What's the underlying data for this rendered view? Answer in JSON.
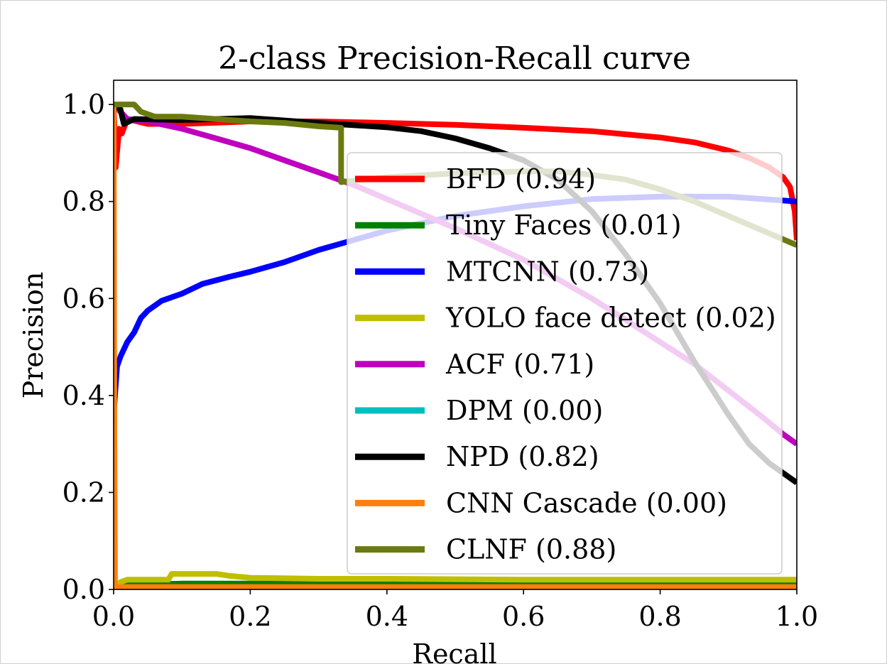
{
  "chart_data": {
    "type": "line",
    "title": "2-class Precision-Recall curve",
    "xlabel": "Recall",
    "ylabel": "Precision",
    "xlim": [
      0.0,
      1.0
    ],
    "ylim": [
      0.0,
      1.05
    ],
    "xticks": [
      0.0,
      0.2,
      0.4,
      0.6,
      0.8,
      1.0
    ],
    "xtick_labels": [
      "0.0",
      "0.2",
      "0.4",
      "0.6",
      "0.8",
      "1.0"
    ],
    "yticks": [
      0.0,
      0.2,
      0.4,
      0.6,
      0.8,
      1.0
    ],
    "ytick_labels": [
      "0.0",
      "0.2",
      "0.4",
      "0.6",
      "0.8",
      "1.0"
    ],
    "grid": false,
    "legend_position": "center-right",
    "series": [
      {
        "name": "BFD (0.94)",
        "color": "#ff0000",
        "points": [
          [
            0.0,
            1.0
          ],
          [
            0.003,
            0.87
          ],
          [
            0.008,
            0.95
          ],
          [
            0.012,
            0.94
          ],
          [
            0.02,
            0.97
          ],
          [
            0.05,
            0.96
          ],
          [
            0.1,
            0.96
          ],
          [
            0.2,
            0.965
          ],
          [
            0.3,
            0.965
          ],
          [
            0.4,
            0.962
          ],
          [
            0.5,
            0.958
          ],
          [
            0.6,
            0.952
          ],
          [
            0.7,
            0.945
          ],
          [
            0.8,
            0.932
          ],
          [
            0.85,
            0.922
          ],
          [
            0.9,
            0.905
          ],
          [
            0.93,
            0.89
          ],
          [
            0.96,
            0.87
          ],
          [
            0.98,
            0.85
          ],
          [
            0.99,
            0.83
          ],
          [
            0.997,
            0.78
          ],
          [
            1.0,
            0.72
          ]
        ]
      },
      {
        "name": "Tiny Faces (0.01)",
        "color": "#008000",
        "points": [
          [
            0.0,
            0.0
          ],
          [
            0.002,
            0.01
          ],
          [
            0.1,
            0.012
          ],
          [
            0.3,
            0.012
          ],
          [
            0.5,
            0.012
          ],
          [
            0.7,
            0.012
          ],
          [
            0.9,
            0.012
          ],
          [
            1.0,
            0.012
          ]
        ]
      },
      {
        "name": "MTCNN (0.73)",
        "color": "#0000ff",
        "points": [
          [
            0.0,
            0.36
          ],
          [
            0.005,
            0.46
          ],
          [
            0.01,
            0.48
          ],
          [
            0.02,
            0.51
          ],
          [
            0.03,
            0.53
          ],
          [
            0.04,
            0.56
          ],
          [
            0.05,
            0.575
          ],
          [
            0.07,
            0.595
          ],
          [
            0.1,
            0.61
          ],
          [
            0.13,
            0.63
          ],
          [
            0.17,
            0.645
          ],
          [
            0.2,
            0.655
          ],
          [
            0.25,
            0.675
          ],
          [
            0.3,
            0.7
          ],
          [
            0.35,
            0.72
          ],
          [
            0.4,
            0.74
          ],
          [
            0.5,
            0.77
          ],
          [
            0.6,
            0.79
          ],
          [
            0.7,
            0.805
          ],
          [
            0.8,
            0.81
          ],
          [
            0.9,
            0.81
          ],
          [
            0.95,
            0.805
          ],
          [
            1.0,
            0.8
          ]
        ]
      },
      {
        "name": "YOLO face detect (0.02)",
        "color": "#bfbf00",
        "points": [
          [
            0.0,
            0.005
          ],
          [
            0.01,
            0.015
          ],
          [
            0.02,
            0.02
          ],
          [
            0.08,
            0.02
          ],
          [
            0.085,
            0.032
          ],
          [
            0.15,
            0.032
          ],
          [
            0.17,
            0.028
          ],
          [
            0.2,
            0.024
          ],
          [
            0.3,
            0.022
          ],
          [
            0.4,
            0.022
          ],
          [
            0.6,
            0.02
          ],
          [
            0.8,
            0.02
          ],
          [
            1.0,
            0.02
          ]
        ]
      },
      {
        "name": "ACF (0.71)",
        "color": "#bf00bf",
        "points": [
          [
            0.0,
            1.0
          ],
          [
            0.02,
            0.97
          ],
          [
            0.05,
            0.965
          ],
          [
            0.1,
            0.95
          ],
          [
            0.15,
            0.93
          ],
          [
            0.2,
            0.91
          ],
          [
            0.25,
            0.885
          ],
          [
            0.3,
            0.86
          ],
          [
            0.35,
            0.835
          ],
          [
            0.4,
            0.805
          ],
          [
            0.5,
            0.745
          ],
          [
            0.6,
            0.68
          ],
          [
            0.7,
            0.6
          ],
          [
            0.8,
            0.51
          ],
          [
            0.85,
            0.465
          ],
          [
            0.9,
            0.41
          ],
          [
            0.95,
            0.355
          ],
          [
            0.98,
            0.32
          ],
          [
            1.0,
            0.3
          ]
        ]
      },
      {
        "name": "DPM (0.00)",
        "color": "#00bfbf",
        "points": [
          [
            0.0,
            0.0
          ],
          [
            1.0,
            0.0
          ]
        ]
      },
      {
        "name": "NPD (0.82)",
        "color": "#000000",
        "points": [
          [
            0.0,
            1.0
          ],
          [
            0.01,
            0.99
          ],
          [
            0.015,
            0.96
          ],
          [
            0.03,
            0.97
          ],
          [
            0.1,
            0.968
          ],
          [
            0.2,
            0.972
          ],
          [
            0.3,
            0.962
          ],
          [
            0.4,
            0.953
          ],
          [
            0.45,
            0.945
          ],
          [
            0.5,
            0.93
          ],
          [
            0.55,
            0.91
          ],
          [
            0.6,
            0.885
          ],
          [
            0.65,
            0.845
          ],
          [
            0.7,
            0.78
          ],
          [
            0.75,
            0.69
          ],
          [
            0.8,
            0.59
          ],
          [
            0.85,
            0.47
          ],
          [
            0.9,
            0.36
          ],
          [
            0.93,
            0.3
          ],
          [
            0.96,
            0.26
          ],
          [
            0.98,
            0.24
          ],
          [
            1.0,
            0.22
          ]
        ]
      },
      {
        "name": "CNN Cascade (0.00)",
        "color": "#ff7f0e",
        "points": [
          [
            0.0,
            1.0
          ],
          [
            0.001,
            0.3
          ],
          [
            0.002,
            0.005
          ],
          [
            0.2,
            0.005
          ],
          [
            0.5,
            0.005
          ],
          [
            1.0,
            0.005
          ]
        ]
      },
      {
        "name": "CLNF (0.88)",
        "color": "#6b7a10",
        "points": [
          [
            0.0,
            1.0
          ],
          [
            0.03,
            1.0
          ],
          [
            0.04,
            0.985
          ],
          [
            0.06,
            0.975
          ],
          [
            0.1,
            0.975
          ],
          [
            0.15,
            0.97
          ],
          [
            0.2,
            0.965
          ],
          [
            0.25,
            0.962
          ],
          [
            0.3,
            0.955
          ],
          [
            0.333,
            0.952
          ],
          [
            0.333,
            0.84
          ],
          [
            0.4,
            0.85
          ],
          [
            0.5,
            0.858
          ],
          [
            0.6,
            0.862
          ],
          [
            0.65,
            0.862
          ],
          [
            0.7,
            0.855
          ],
          [
            0.75,
            0.845
          ],
          [
            0.8,
            0.825
          ],
          [
            0.85,
            0.8
          ],
          [
            0.9,
            0.77
          ],
          [
            0.95,
            0.74
          ],
          [
            1.0,
            0.71
          ]
        ]
      }
    ]
  }
}
